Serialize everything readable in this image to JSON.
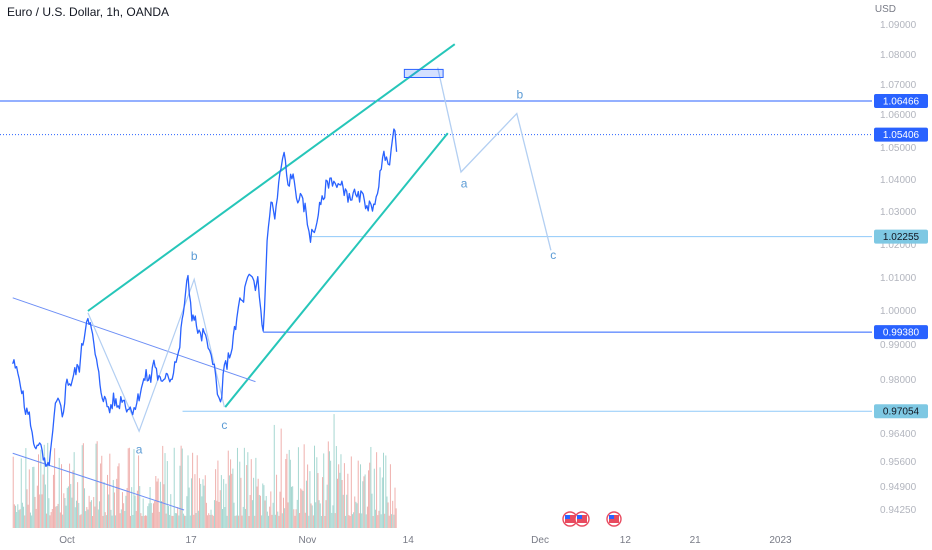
{
  "header": {
    "title": "Euro / U.S. Dollar, 1h, OANDA",
    "currency": "USD"
  },
  "chart_data": {
    "type": "line",
    "symbol": "EURUSD",
    "interval": "1h",
    "y_ticks": [
      1.09,
      1.08,
      1.07,
      1.06,
      1.05,
      1.04,
      1.03,
      1.02,
      1.01,
      1.0,
      0.99,
      0.98,
      0.97,
      0.964,
      0.956,
      0.949,
      0.9425
    ],
    "y_tick_labels": [
      "1.09000",
      "1.08000",
      "1.07000",
      "1.06000",
      "1.05000",
      "1.04000",
      "1.03000",
      "1.02000",
      "1.01000",
      "1.00000",
      "0.99000",
      "0.98000",
      "0.97000",
      "0.96400",
      "0.95600",
      "0.94900",
      "0.94250"
    ],
    "x_ticks": [
      {
        "label": "Oct",
        "day": 0
      },
      {
        "label": "17",
        "day": 16
      },
      {
        "label": "Nov",
        "day": 31
      },
      {
        "label": "14",
        "day": 44
      },
      {
        "label": "Dec",
        "day": 61
      },
      {
        "label": "12",
        "day": 72
      },
      {
        "label": "21",
        "day": 81
      },
      {
        "label": "2023",
        "day": 92
      }
    ],
    "price_series": [
      [
        -7.0,
        0.985
      ],
      [
        -6.0,
        0.98
      ],
      [
        -5.5,
        0.972
      ],
      [
        -4.7,
        0.968
      ],
      [
        -4.3,
        0.96
      ],
      [
        -3.7,
        0.962
      ],
      [
        -3.2,
        0.958
      ],
      [
        -2.6,
        0.953
      ],
      [
        -2.0,
        0.96
      ],
      [
        -1.5,
        0.972
      ],
      [
        -1.0,
        0.973
      ],
      [
        -0.6,
        0.969
      ],
      [
        0.0,
        0.98
      ],
      [
        0.5,
        0.979
      ],
      [
        1.0,
        0.982
      ],
      [
        1.6,
        0.984
      ],
      [
        2.2,
        0.993
      ],
      [
        2.7,
        0.9995
      ],
      [
        3.3,
        0.992
      ],
      [
        3.8,
        0.985
      ],
      [
        4.4,
        0.977
      ],
      [
        5.0,
        0.973
      ],
      [
        5.5,
        0.971
      ],
      [
        6.0,
        0.974
      ],
      [
        6.6,
        0.972
      ],
      [
        7.1,
        0.975
      ],
      [
        7.7,
        0.972
      ],
      [
        8.3,
        0.971
      ],
      [
        9.0,
        0.973
      ],
      [
        9.6,
        0.978
      ],
      [
        10.2,
        0.981
      ],
      [
        10.8,
        0.98
      ],
      [
        11.2,
        0.986
      ],
      [
        11.7,
        0.981
      ],
      [
        12.3,
        0.978
      ],
      [
        12.8,
        0.983
      ],
      [
        13.4,
        0.98
      ],
      [
        13.9,
        0.985
      ],
      [
        14.4,
        0.987
      ],
      [
        15.0,
        1.0
      ],
      [
        15.6,
        1.01
      ],
      [
        16.1,
        0.999
      ],
      [
        16.7,
        0.996
      ],
      [
        17.2,
        0.992
      ],
      [
        17.7,
        0.9935
      ],
      [
        18.2,
        0.988
      ],
      [
        18.6,
        0.989
      ],
      [
        19.0,
        0.984
      ],
      [
        19.4,
        0.975
      ],
      [
        19.8,
        0.973
      ],
      [
        20.3,
        0.983
      ],
      [
        20.8,
        0.986
      ],
      [
        21.3,
        0.99
      ],
      [
        21.9,
        0.997
      ],
      [
        22.3,
        1.004
      ],
      [
        22.6,
        1.002
      ],
      [
        23.1,
        1.008
      ],
      [
        23.5,
        1.01
      ],
      [
        23.9,
        1.009
      ],
      [
        24.3,
        1.006
      ],
      [
        24.6,
        1.01
      ],
      [
        25.0,
        1.0
      ],
      [
        25.3,
        0.9935
      ],
      [
        25.8,
        1.02
      ],
      [
        26.3,
        1.034
      ],
      [
        26.8,
        1.028
      ],
      [
        27.3,
        1.038
      ],
      [
        27.6,
        1.044
      ],
      [
        28.0,
        1.048
      ],
      [
        28.5,
        1.038
      ],
      [
        29.0,
        1.042
      ],
      [
        29.6,
        1.035
      ],
      [
        30.1,
        1.034
      ],
      [
        30.7,
        1.031
      ],
      [
        31.0,
        1.027
      ],
      [
        31.4,
        1.0227
      ],
      [
        31.9,
        1.024
      ],
      [
        32.4,
        1.03
      ],
      [
        32.9,
        1.033
      ],
      [
        33.4,
        1.038
      ],
      [
        33.9,
        1.04
      ],
      [
        34.4,
        1.04
      ],
      [
        34.8,
        1.038
      ],
      [
        35.3,
        1.038
      ],
      [
        35.9,
        1.037
      ],
      [
        36.4,
        1.034
      ],
      [
        36.9,
        1.036
      ],
      [
        37.4,
        1.034
      ],
      [
        37.9,
        1.035
      ],
      [
        38.5,
        1.033
      ],
      [
        39.0,
        1.032
      ],
      [
        39.4,
        1.029
      ],
      [
        39.7,
        1.034
      ],
      [
        40.2,
        1.039
      ],
      [
        40.7,
        1.046
      ],
      [
        41.2,
        1.049
      ],
      [
        41.6,
        1.045
      ],
      [
        42.0,
        1.0535
      ],
      [
        42.3,
        1.054
      ],
      [
        42.5,
        1.0488
      ]
    ],
    "volume_series": {
      "start_day": -7.0,
      "end_day": 42.5,
      "min": 0,
      "max": 100,
      "note": "volume histogram, values relative 0-100"
    },
    "wave_labels": [
      {
        "text": "a",
        "day": 9.3,
        "price": 0.9585
      },
      {
        "text": "b",
        "day": 16.4,
        "price": 1.0155
      },
      {
        "text": "c",
        "day": 20.3,
        "price": 0.9655
      },
      {
        "text": "a",
        "day": 51.2,
        "price": 1.0377
      },
      {
        "text": "b",
        "day": 58.4,
        "price": 1.0655
      },
      {
        "text": "c",
        "day": 62.7,
        "price": 1.0158
      }
    ],
    "price_line_labels": [
      {
        "label": "1.06466",
        "value": 1.06466,
        "style": "solid",
        "color": "#2962ff"
      },
      {
        "label": "1.05406",
        "value": 1.05406,
        "style": "dotted",
        "color": "#2962ff"
      },
      {
        "label": "1.02255",
        "value": 1.02255,
        "style": "solid",
        "color": "#90caf9"
      },
      {
        "label": "0.99380",
        "value": 0.9938,
        "style": "solid",
        "color": "#2962ff"
      },
      {
        "label": "0.97054",
        "value": 0.97054,
        "style": "solid",
        "color": "#90caf9"
      }
    ],
    "projection_path": [
      [
        47.8,
        1.0758
      ],
      [
        50.8,
        1.0425
      ],
      [
        58.0,
        1.0605
      ],
      [
        62.4,
        1.0184
      ]
    ],
    "target_zone": {
      "day_start": 43.5,
      "day_end": 48.5,
      "price_low": 1.0725,
      "price_high": 1.0752
    },
    "trendlines": [
      {
        "name": "upper-channel",
        "points": [
          [
            2.7,
            1.0
          ],
          [
            50.0,
            1.0836
          ]
        ]
      },
      {
        "name": "lower-channel",
        "points": [
          [
            20.4,
            0.9718
          ],
          [
            49.1,
            1.0545
          ]
        ]
      },
      {
        "name": "falling-resistance",
        "points": [
          [
            -7.0,
            1.004
          ],
          [
            24.3,
            0.9795
          ]
        ]
      },
      {
        "name": "lower-falling",
        "points": [
          [
            -7.0,
            0.9585
          ],
          [
            15.1,
            0.9425
          ]
        ]
      }
    ],
    "wave_lines": [
      [
        [
          2.7,
          0.9995
        ],
        [
          9.3,
          0.9648
        ],
        [
          16.4,
          1.0096
        ],
        [
          20.3,
          0.9718
        ]
      ]
    ],
    "colors": {
      "price": "#2962ff",
      "channel": "#26c6b9",
      "wave": "#b3cff2",
      "falling": "#6c8ef5",
      "volume_up": "#a6d7d1",
      "volume_down": "#efb0ad",
      "badge_dark": "#2962ff",
      "badge_light": "#7ec8e3"
    }
  }
}
